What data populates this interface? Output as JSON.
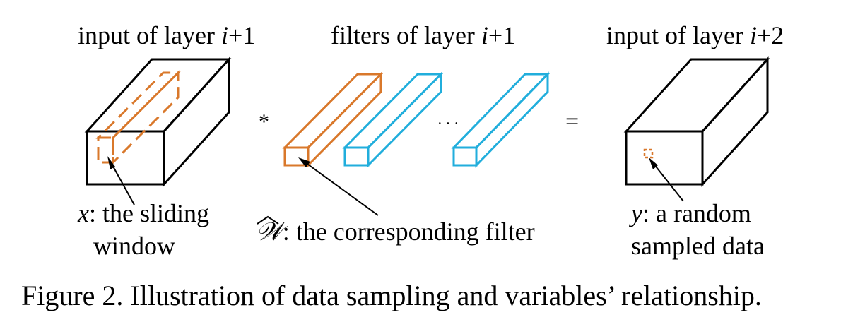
{
  "labels": {
    "input_left_prefix": "input of layer ",
    "input_left_var": "i",
    "input_left_suffix": "+1",
    "filters_prefix": "filters of layer ",
    "filters_var": "i",
    "filters_suffix": "+1",
    "input_right_prefix": "input of layer ",
    "input_right_var": "i",
    "input_right_suffix": "+2"
  },
  "operators": {
    "convolve": "*",
    "dots": "· · ·",
    "equals": "="
  },
  "annotations": {
    "x_var": "x",
    "x_line1": ": the sliding",
    "x_line2": "window",
    "w_var": "𝒲",
    "w_text": ": the corresponding filter",
    "y_var": "y",
    "y_line1": ": a random",
    "y_line2": "sampled data"
  },
  "caption": "Figure 2. Illustration of data sampling and variables’ relationship.",
  "colors": {
    "highlight": "#D9782B",
    "filter": "#21AEDC",
    "outline": "#000000"
  }
}
